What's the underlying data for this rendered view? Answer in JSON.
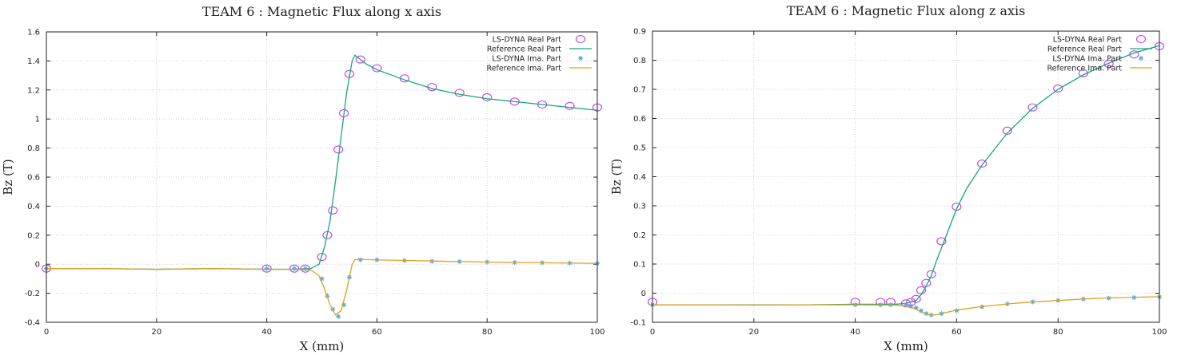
{
  "chart_data": [
    {
      "type": "line",
      "title": "TEAM 6  : Magnetic Flux along x axis",
      "xlabel": "X (mm)",
      "ylabel": "Bz (T)",
      "xlim": [
        0,
        100
      ],
      "ylim": [
        -0.4,
        1.6
      ],
      "xticks": [
        "0",
        "20",
        "40",
        "60",
        "80",
        "100"
      ],
      "yticks": [
        "-0.4",
        "-0.2",
        "0",
        "0.2",
        "0.4",
        "0.6",
        "0.8",
        "1",
        "1.2",
        "1.4",
        "1.6"
      ],
      "grid": true,
      "legend_position": "top-right",
      "series": [
        {
          "name": "LS-DYNA Real Part",
          "style": "circle-markers",
          "color": "#c040e0",
          "x": [
            0,
            40,
            45,
            47,
            50,
            51,
            52,
            53,
            54,
            55,
            57,
            60,
            65,
            70,
            75,
            80,
            85,
            90,
            95,
            100
          ],
          "y": [
            -0.03,
            -0.03,
            -0.03,
            -0.03,
            0.05,
            0.2,
            0.37,
            0.79,
            1.04,
            1.31,
            1.41,
            1.35,
            1.28,
            1.22,
            1.18,
            1.15,
            1.12,
            1.1,
            1.09,
            1.08
          ]
        },
        {
          "name": "Reference Real Part",
          "style": "line",
          "color": "#1aa37f",
          "x": [
            0,
            10,
            20,
            30,
            40,
            45,
            48,
            49.5,
            50.5,
            51.5,
            52.5,
            53.5,
            54.5,
            55.5,
            56,
            57,
            58,
            60,
            65,
            70,
            75,
            80,
            85,
            90,
            95,
            100
          ],
          "y": [
            -0.03,
            -0.03,
            -0.035,
            -0.03,
            -0.035,
            -0.035,
            -0.03,
            0.0,
            0.12,
            0.3,
            0.58,
            0.88,
            1.18,
            1.4,
            1.44,
            1.41,
            1.38,
            1.34,
            1.27,
            1.21,
            1.17,
            1.14,
            1.12,
            1.1,
            1.08,
            1.06
          ]
        },
        {
          "name": "LS-DYNA Ima. Part",
          "style": "star-markers",
          "color": "#4aa8e0",
          "x": [
            0,
            40,
            45,
            47,
            50,
            51,
            52,
            53,
            54,
            55,
            57,
            60,
            65,
            70,
            75,
            80,
            85,
            90,
            95,
            100
          ],
          "y": [
            -0.03,
            -0.03,
            -0.03,
            -0.03,
            -0.1,
            -0.22,
            -0.31,
            -0.36,
            -0.28,
            -0.09,
            0.03,
            0.03,
            0.025,
            0.02,
            0.018,
            0.015,
            0.012,
            0.01,
            0.008,
            0.005
          ]
        },
        {
          "name": "Reference Ima. Part",
          "style": "line",
          "color": "#e0a020",
          "x": [
            0,
            10,
            20,
            30,
            40,
            45,
            48,
            49.5,
            50.5,
            51.5,
            52.5,
            53.5,
            54.5,
            55.5,
            56,
            57,
            58,
            60,
            65,
            70,
            75,
            80,
            85,
            90,
            95,
            100
          ],
          "y": [
            -0.03,
            -0.03,
            -0.035,
            -0.03,
            -0.035,
            -0.035,
            -0.04,
            -0.08,
            -0.17,
            -0.28,
            -0.35,
            -0.32,
            -0.18,
            0.0,
            0.03,
            0.035,
            0.032,
            0.03,
            0.026,
            0.022,
            0.018,
            0.015,
            0.012,
            0.01,
            0.008,
            0.006
          ]
        }
      ]
    },
    {
      "type": "line",
      "title": "TEAM 6  : Magnetic Flux along z axis",
      "xlabel": "X (mm)",
      "ylabel": "Bz (T)",
      "xlim": [
        0,
        100
      ],
      "ylim": [
        -0.1,
        0.9
      ],
      "xticks": [
        "0",
        "20",
        "40",
        "60",
        "80",
        "100"
      ],
      "yticks": [
        "-0.1",
        "0",
        "0.1",
        "0.2",
        "0.3",
        "0.4",
        "0.5",
        "0.6",
        "0.7",
        "0.8",
        "0.9"
      ],
      "grid": true,
      "legend_position": "top-right",
      "series": [
        {
          "name": "LS-DYNA Real Part",
          "style": "circle-markers",
          "color": "#c040e0",
          "x": [
            0,
            40,
            45,
            47,
            50,
            51,
            52,
            53,
            54,
            55,
            57,
            60,
            65,
            70,
            75,
            80,
            85,
            90,
            95,
            100
          ],
          "y": [
            -0.03,
            -0.03,
            -0.03,
            -0.03,
            -0.035,
            -0.03,
            -0.02,
            0.01,
            0.035,
            0.065,
            0.178,
            0.297,
            0.445,
            0.558,
            0.638,
            0.703,
            0.755,
            0.788,
            0.82,
            0.848
          ]
        },
        {
          "name": "Reference Real Part",
          "style": "line",
          "color": "#1aa37f",
          "x": [
            0,
            10,
            20,
            30,
            40,
            48,
            50,
            52,
            53,
            54,
            55,
            56,
            58,
            60,
            62,
            65,
            70,
            75,
            80,
            85,
            90,
            95,
            100
          ],
          "y": [
            -0.04,
            -0.04,
            -0.04,
            -0.04,
            -0.038,
            -0.038,
            -0.035,
            -0.025,
            -0.005,
            0.025,
            0.06,
            0.11,
            0.2,
            0.29,
            0.36,
            0.44,
            0.55,
            0.635,
            0.7,
            0.75,
            0.79,
            0.825,
            0.85
          ]
        },
        {
          "name": "LS-DYNA Ima. Part",
          "style": "star-markers",
          "color": "#4aa8e0",
          "x": [
            0,
            40,
            45,
            47,
            50,
            51,
            52,
            53,
            54,
            55,
            57,
            60,
            65,
            70,
            75,
            80,
            85,
            90,
            95,
            100
          ],
          "y": [
            -0.04,
            -0.04,
            -0.04,
            -0.04,
            -0.04,
            -0.045,
            -0.05,
            -0.06,
            -0.07,
            -0.075,
            -0.07,
            -0.06,
            -0.047,
            -0.037,
            -0.03,
            -0.025,
            -0.02,
            -0.017,
            -0.015,
            -0.013
          ]
        },
        {
          "name": "Reference Ima. Part",
          "style": "line",
          "color": "#e0a020",
          "x": [
            0,
            10,
            20,
            30,
            40,
            48,
            50,
            52,
            53,
            54,
            55,
            56,
            58,
            60,
            65,
            70,
            75,
            80,
            85,
            90,
            95,
            100
          ],
          "y": [
            -0.04,
            -0.04,
            -0.041,
            -0.04,
            -0.04,
            -0.041,
            -0.045,
            -0.055,
            -0.065,
            -0.072,
            -0.076,
            -0.074,
            -0.066,
            -0.058,
            -0.046,
            -0.037,
            -0.03,
            -0.025,
            -0.02,
            -0.016,
            -0.014,
            -0.012
          ]
        }
      ]
    }
  ]
}
